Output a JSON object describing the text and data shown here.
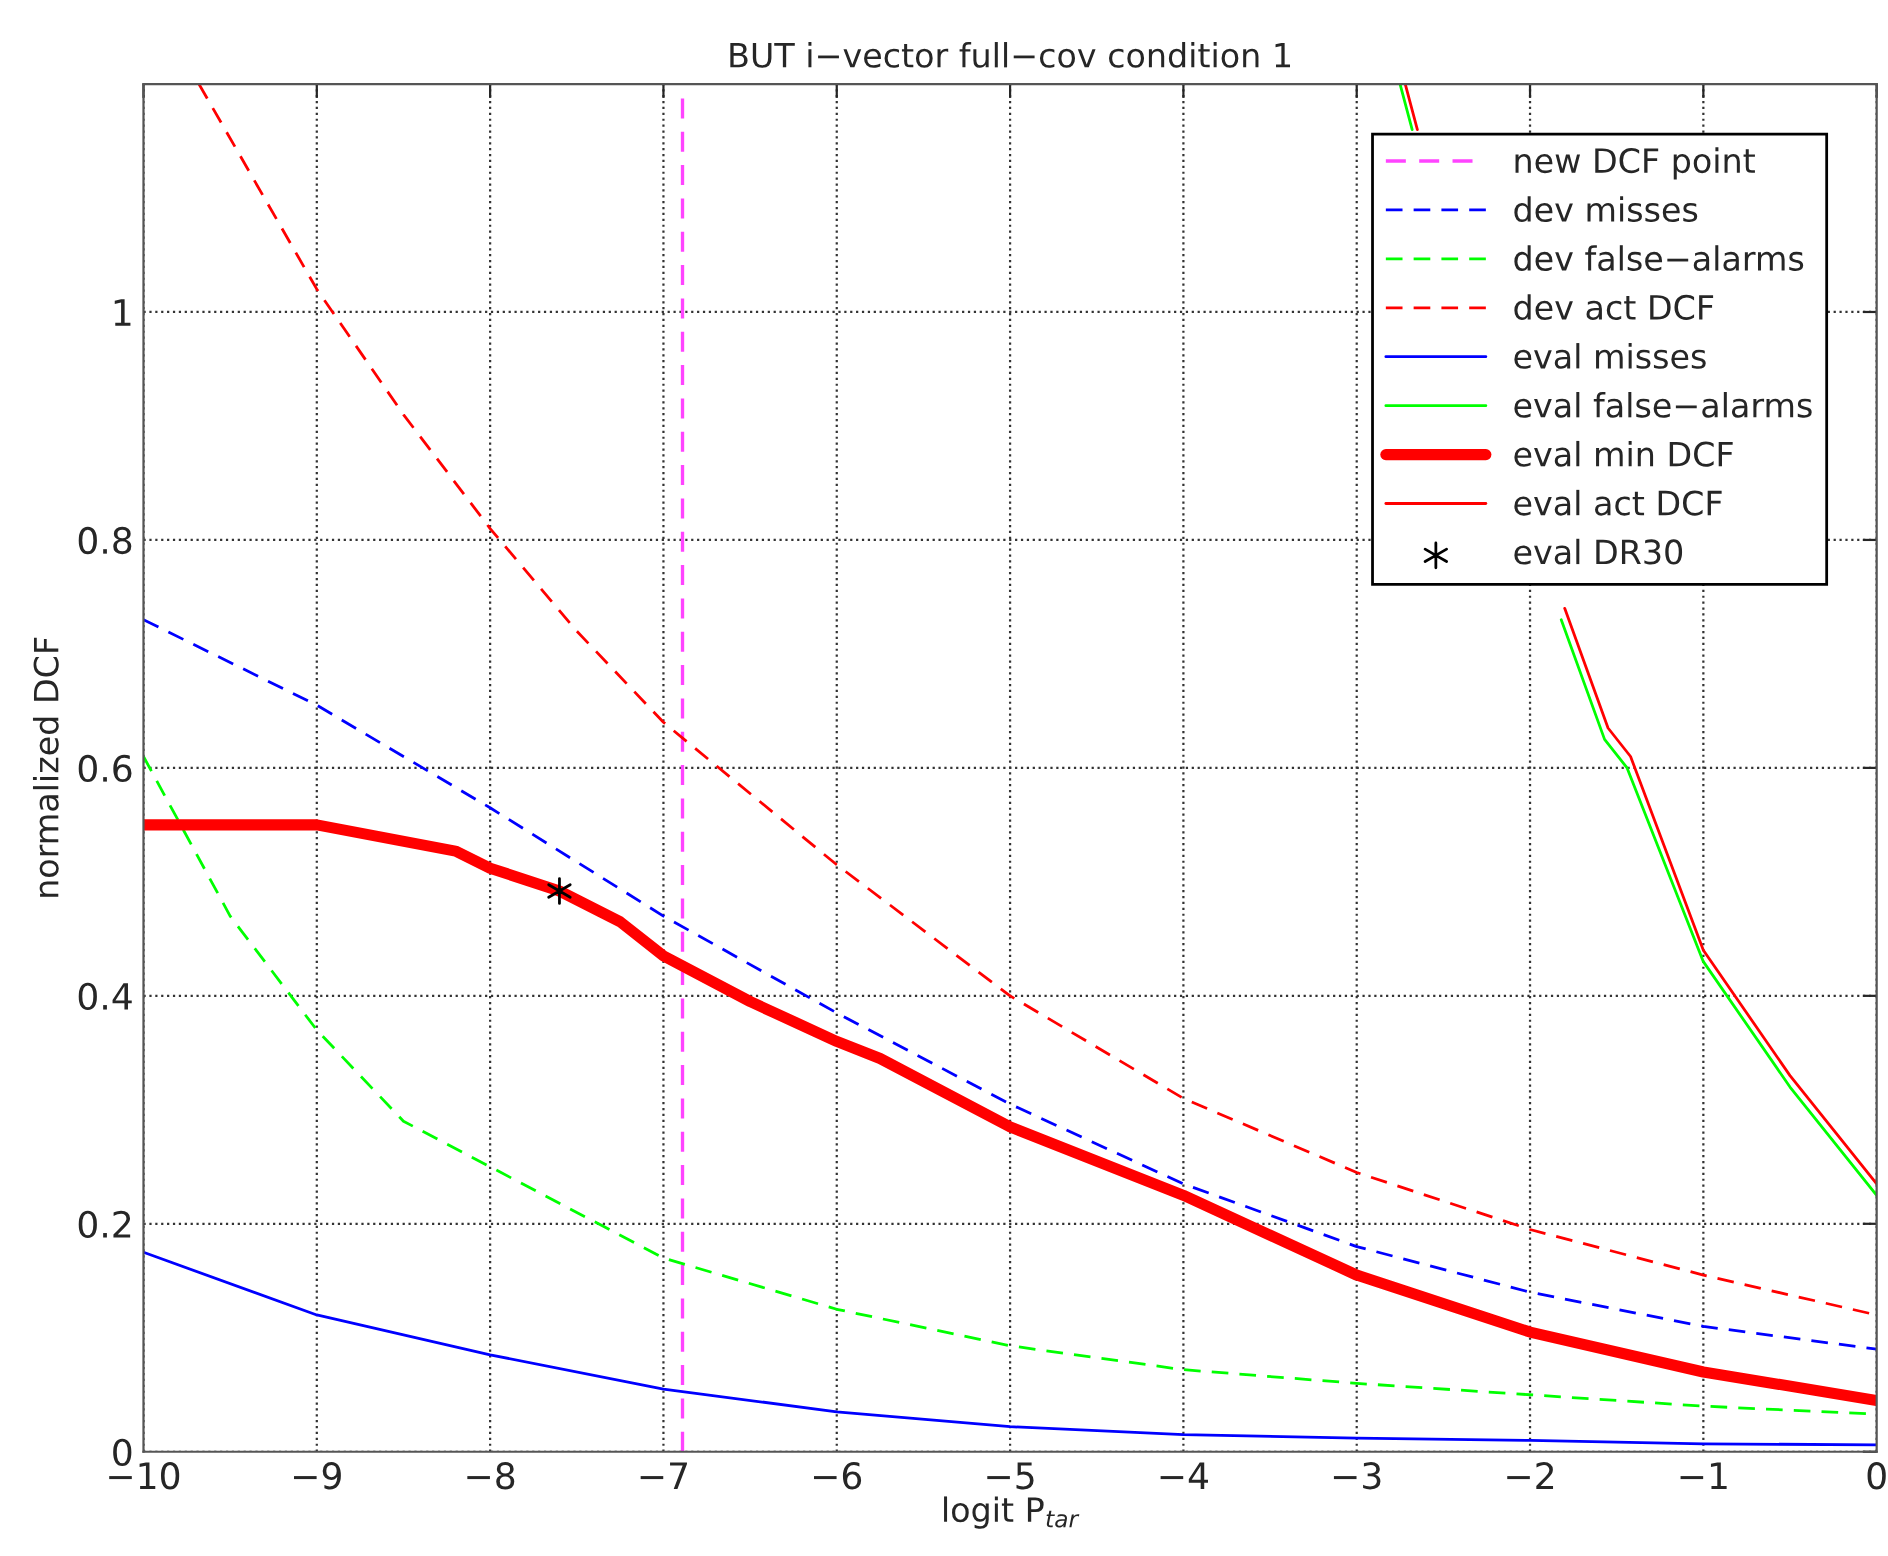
{
  "chart_data": {
    "type": "line",
    "title": "BUT i−vector full−cov condition 1",
    "xlabel": "logit P$_{tar}$",
    "ylabel": "normalized DCF",
    "xlim": [
      -10,
      0
    ],
    "ylim": [
      0,
      1.2
    ],
    "xticks": [
      -10,
      -9,
      -8,
      -7,
      -6,
      -5,
      -4,
      -3,
      -2,
      -1,
      0
    ],
    "yticks": [
      0,
      0.2,
      0.4,
      0.6,
      0.8,
      1
    ],
    "grid": true,
    "legend": "top right",
    "series": [
      {
        "name": "new DCF point",
        "color": "#ff44ff",
        "line_style": "dashed",
        "x": [
          -6.89,
          -6.89
        ],
        "values": [
          0,
          1.2
        ]
      },
      {
        "name": "dev misses",
        "color": "#0000ff",
        "line_style": "dashed",
        "x": [
          -10,
          -9,
          -8,
          -7,
          -6,
          -5,
          -4,
          -3,
          -2,
          -1,
          0
        ],
        "values": [
          0.73,
          0.655,
          0.565,
          0.47,
          0.385,
          0.305,
          0.235,
          0.18,
          0.14,
          0.11,
          0.09
        ]
      },
      {
        "name": "dev false−alarms",
        "color": "#00ff00",
        "line_style": "dashed",
        "x": [
          -10,
          -9.5,
          -9,
          -8.5,
          -8,
          -7.5,
          -7,
          -6,
          -5,
          -4,
          -3,
          -2,
          -1,
          0
        ],
        "values": [
          0.61,
          0.47,
          0.37,
          0.29,
          0.25,
          0.21,
          0.17,
          0.125,
          0.093,
          0.072,
          0.06,
          0.05,
          0.04,
          0.033
        ]
      },
      {
        "name": "dev act DCF",
        "color": "#ff0000",
        "line_style": "dashed",
        "x": [
          -9.68,
          -9,
          -8.5,
          -8,
          -7.5,
          -7,
          -6,
          -5,
          -4,
          -3,
          -2,
          -1,
          0
        ],
        "values": [
          1.2,
          1.02,
          0.91,
          0.81,
          0.72,
          0.64,
          0.515,
          0.4,
          0.31,
          0.245,
          0.195,
          0.155,
          0.12
        ]
      },
      {
        "name": "eval misses",
        "color": "#0000ff",
        "line_style": "solid",
        "x": [
          -10,
          -9,
          -8,
          -7,
          -6,
          -5,
          -4,
          -3,
          -2,
          -1,
          0
        ],
        "values": [
          0.175,
          0.12,
          0.085,
          0.055,
          0.035,
          0.022,
          0.015,
          0.012,
          0.01,
          0.007,
          0.006
        ]
      },
      {
        "name": "eval false−alarms",
        "color": "#00ff00",
        "line_style": "solid",
        "x": [
          -2.75,
          -2.68,
          -2.5,
          -2,
          -1.82,
          -1.57,
          -1.44,
          -1,
          -0.5,
          0
        ],
        "values": [
          1.2,
          1.16,
          null,
          null,
          0.73,
          0.625,
          0.6,
          0.43,
          0.32,
          0.225
        ]
      },
      {
        "name": "eval min DCF",
        "color": "#ff0000",
        "line_style": "solid",
        "x": [
          -10,
          -9,
          -8.2,
          -8,
          -7.6,
          -7.25,
          -7,
          -6.5,
          -6,
          -5.75,
          -5,
          -4,
          -3,
          -2,
          -1,
          0
        ],
        "values": [
          0.55,
          0.55,
          0.527,
          0.512,
          0.492,
          0.465,
          0.435,
          0.395,
          0.36,
          0.345,
          0.285,
          0.225,
          0.155,
          0.105,
          0.07,
          0.045
        ]
      },
      {
        "name": "eval act DCF",
        "color": "#ff0000",
        "line_style": "solid",
        "x": [
          -2.72,
          -2.65,
          -2.5,
          -2,
          -1.8,
          -1.55,
          -1.42,
          -1,
          -0.5,
          0
        ],
        "values": [
          1.2,
          1.16,
          null,
          null,
          0.74,
          0.635,
          0.61,
          0.44,
          0.33,
          0.235
        ]
      },
      {
        "name": "eval DR30",
        "type": "scatter",
        "marker": "cross",
        "color": "#000000",
        "x": [
          -7.6
        ],
        "values": [
          0.492
        ]
      }
    ]
  }
}
